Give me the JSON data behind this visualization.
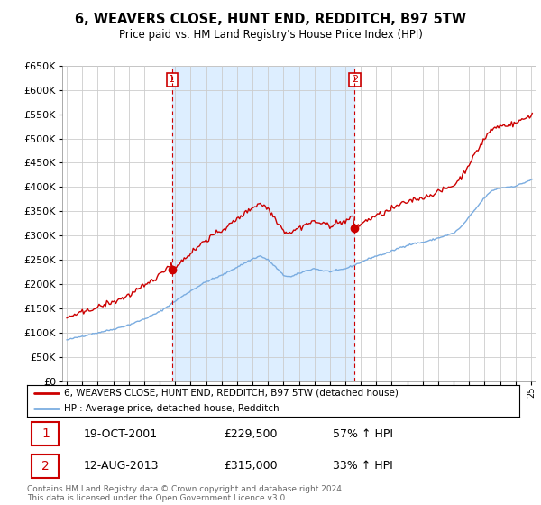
{
  "title": "6, WEAVERS CLOSE, HUNT END, REDDITCH, B97 5TW",
  "subtitle": "Price paid vs. HM Land Registry's House Price Index (HPI)",
  "legend_line1": "6, WEAVERS CLOSE, HUNT END, REDDITCH, B97 5TW (detached house)",
  "legend_line2": "HPI: Average price, detached house, Redditch",
  "sale1_date": "19-OCT-2001",
  "sale1_price": "£229,500",
  "sale1_hpi": "57% ↑ HPI",
  "sale2_date": "12-AUG-2013",
  "sale2_price": "£315,000",
  "sale2_hpi": "33% ↑ HPI",
  "footnote": "Contains HM Land Registry data © Crown copyright and database right 2024.\nThis data is licensed under the Open Government Licence v3.0.",
  "red_color": "#cc0000",
  "blue_color": "#7aace0",
  "sale1_year": 2001.8,
  "sale2_year": 2013.6,
  "shade_color": "#ddeeff",
  "ylim_max": 650000,
  "xlim_start": 1994.7,
  "xlim_end": 2025.3,
  "grid_color": "#cccccc",
  "background_color": "#ffffff"
}
